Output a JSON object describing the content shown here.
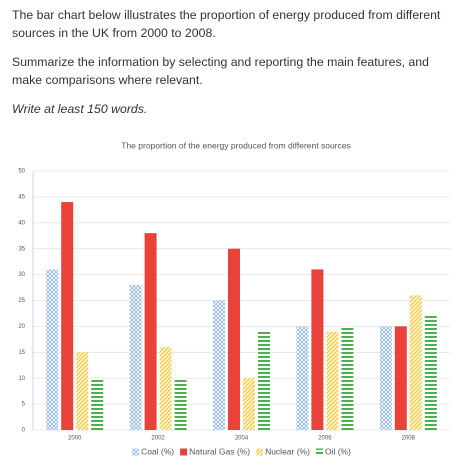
{
  "prompt": {
    "paragraphs": [
      "The bar chart below illustrates the proportion of energy produced from different sources in the UK from 2000 to 2008.",
      "Summarize the information by selecting and reporting the main features, and make comparisons where relevant."
    ],
    "instruction": "Write at least 150 words."
  },
  "chart_data": {
    "type": "bar",
    "title": "The proportion of the energy produced from different sources",
    "categories": [
      "2000",
      "2002",
      "2004",
      "2006",
      "2008"
    ],
    "series": [
      {
        "name": "Coal (%)",
        "color": "#8fb4e3",
        "pattern": "crosshatch",
        "values": [
          31,
          28,
          25,
          20,
          20
        ]
      },
      {
        "name": "Natural Gas (%)",
        "color": "#e8423a",
        "pattern": "solid",
        "values": [
          44,
          38,
          35,
          31,
          20
        ]
      },
      {
        "name": "Nuclear (%)",
        "color": "#f5cf4a",
        "pattern": "diagonal",
        "values": [
          15,
          16,
          10,
          19,
          26
        ]
      },
      {
        "name": "Oil (%)",
        "color": "#4caf50",
        "pattern": "horizontal",
        "values": [
          10,
          10,
          19,
          20,
          22
        ]
      }
    ],
    "ylim": [
      0,
      50
    ],
    "yticks": [
      0,
      5,
      10,
      15,
      20,
      25,
      30,
      35,
      40,
      45,
      50
    ],
    "grid": true,
    "legend": "bottom"
  }
}
